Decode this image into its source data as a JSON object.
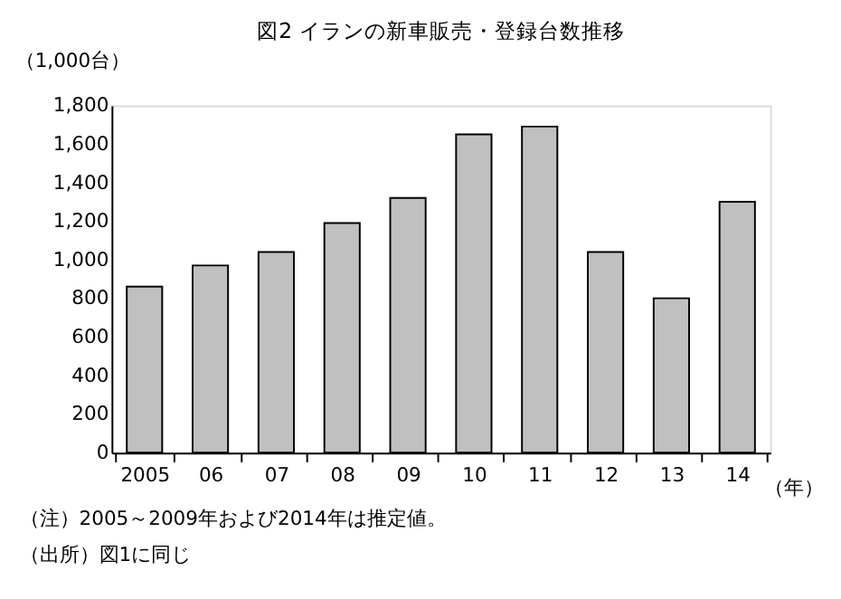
{
  "chart_data": {
    "type": "bar",
    "title": "図2 イランの新車販売・登録台数推移",
    "ylabel": "（1,000台）",
    "xlabel": "（年）",
    "categories": [
      "2005",
      "06",
      "07",
      "08",
      "09",
      "10",
      "11",
      "12",
      "13",
      "14"
    ],
    "values": [
      860,
      970,
      1040,
      1190,
      1320,
      1650,
      1690,
      1040,
      800,
      1300
    ],
    "color": "#c0c0c0",
    "ylim": [
      0,
      1800
    ],
    "yticks": [
      0,
      200,
      400,
      600,
      800,
      {
        "value": 1000,
        "label": "1,000"
      },
      {
        "value": 1200,
        "label": "1,200"
      },
      {
        "value": 1400,
        "label": "1,400"
      },
      {
        "value": 1600,
        "label": "1,600"
      },
      {
        "value": 1800,
        "label": "1,800"
      }
    ],
    "grid": false,
    "annotations": [
      "（注）2005～2009年および2014年は推定値。",
      "（出所）図1に同じ"
    ]
  }
}
